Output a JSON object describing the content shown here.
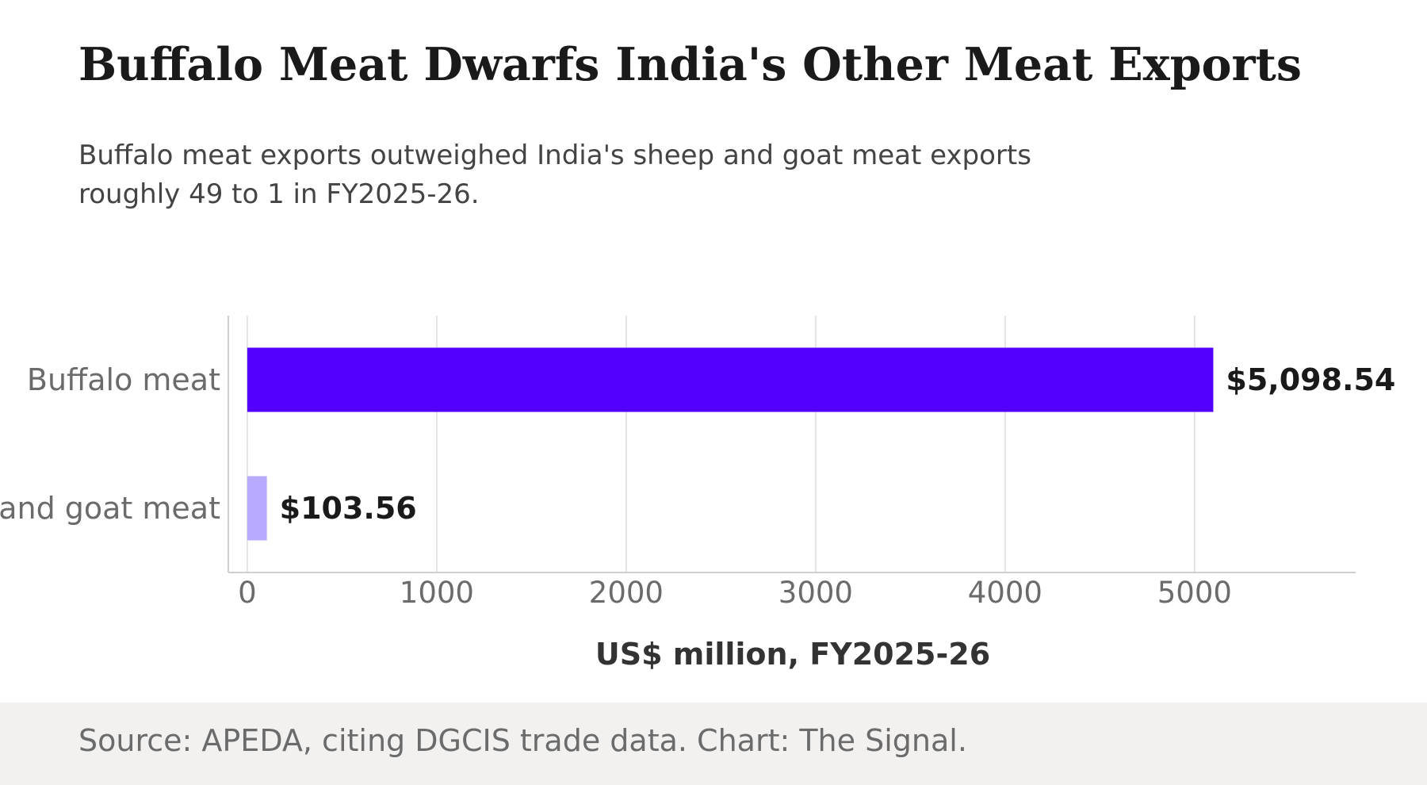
{
  "title": "Buffalo Meat Dwarfs India's Other Meat Exports",
  "subtitle": "Buffalo meat exports outweighed India's sheep and goat meat exports roughly 49 to 1 in FY2025-26.",
  "source": "Source: APEDA, citing DGCIS trade data. Chart: The Signal.",
  "chart_data": {
    "type": "bar",
    "orientation": "horizontal",
    "categories": [
      "Buffalo meat",
      "Sheep and goat meat"
    ],
    "values": [
      5098.54,
      103.56
    ],
    "value_labels": [
      "$5,098.54",
      "$103.56"
    ],
    "bar_colors": [
      "#5200ff",
      "#b8aaff"
    ],
    "xlabel": "US$ million, FY2025-26",
    "ylabel": "",
    "xlim": [
      -100,
      5850
    ],
    "xticks": [
      0,
      1000,
      2000,
      3000,
      4000,
      5000
    ],
    "grid": true,
    "legend": "none"
  }
}
